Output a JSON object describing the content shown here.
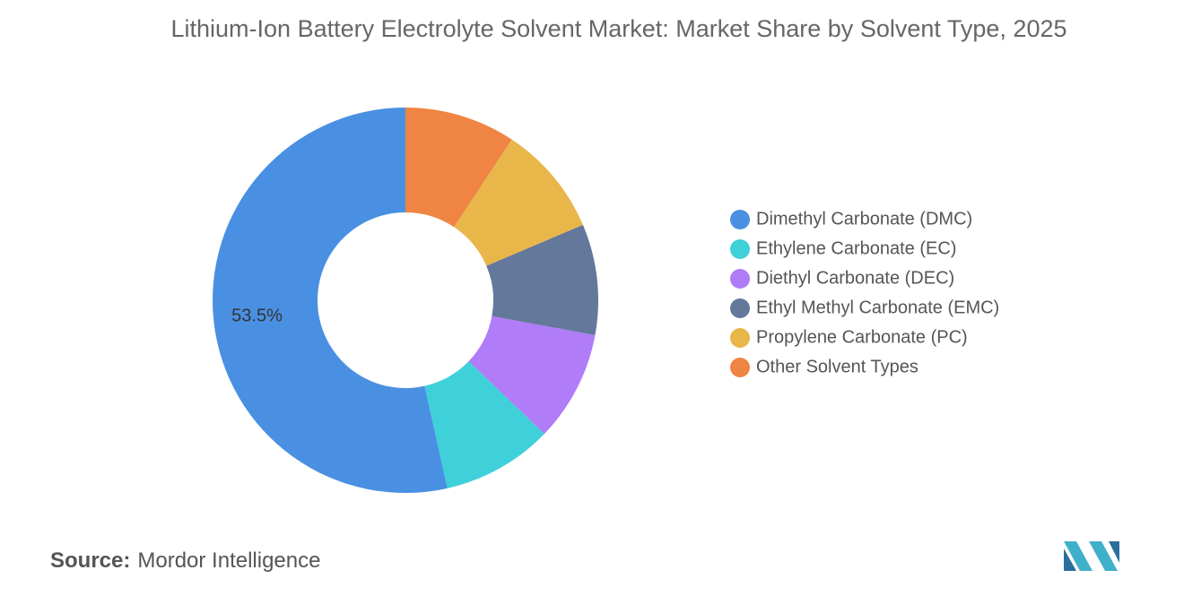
{
  "chart_data": {
    "type": "donut",
    "title": "Lithium-Ion Battery Electrolyte Solvent Market: Market Share by Solvent Type, 2025",
    "categories": [
      "Dimethyl Carbonate (DMC)",
      "Ethylene Carbonate (EC)",
      "Diethyl Carbonate (DEC)",
      "Ethyl Methyl Carbonate (EMC)",
      "Propylene Carbonate (PC)",
      "Other Solvent Types"
    ],
    "values": [
      53.5,
      9.3,
      9.3,
      9.3,
      9.3,
      9.3
    ],
    "value_labels": [
      "53.5%",
      null,
      null,
      null,
      null,
      null
    ],
    "colors": [
      "#4a90e2",
      "#3fd0d9",
      "#b07cf7",
      "#63789a",
      "#e9b64a",
      "#f08442"
    ],
    "direction": "counterclockwise",
    "legend": "right"
  },
  "source": {
    "label": "Source:",
    "text": "Mordor Intelligence"
  }
}
